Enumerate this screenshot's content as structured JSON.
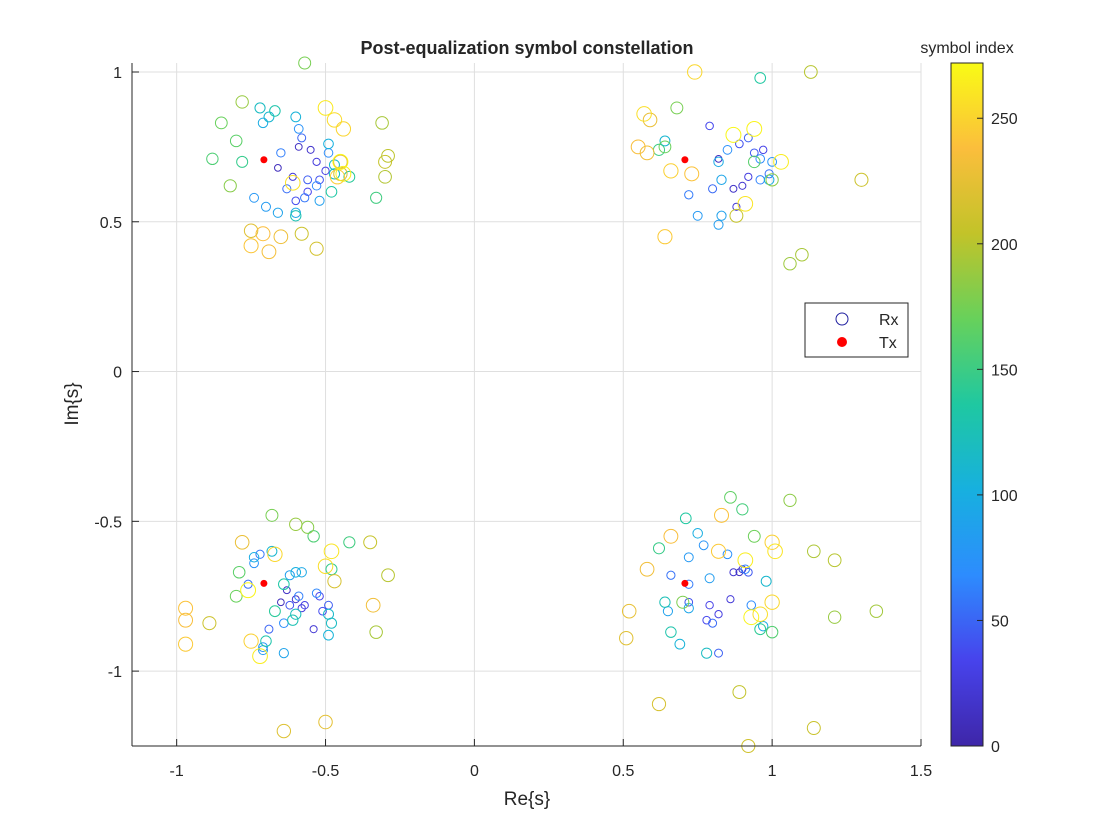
{
  "chart_data": {
    "type": "scatter",
    "title": "Post-equalization symbol constellation",
    "xlabel": "Re{s}",
    "ylabel": "Im{s}",
    "xlim": [
      -1.15,
      1.5
    ],
    "ylim": [
      -1.25,
      1.03
    ],
    "xticks": [
      -1,
      -0.5,
      0,
      0.5,
      1,
      1.5
    ],
    "xtick_labels": [
      "-1",
      "-0.5",
      "0",
      "0.5",
      "1",
      "1.5"
    ],
    "yticks": [
      -1,
      -0.5,
      0,
      0.5,
      1
    ],
    "ytick_labels": [
      "-1",
      "-0.5",
      "0",
      "0.5",
      "1"
    ],
    "grid": true,
    "legend": {
      "location": "right",
      "entries": [
        "Rx",
        "Tx"
      ]
    },
    "colorbar": {
      "label": "symbol index",
      "range": [
        0,
        272
      ],
      "ticks": [
        0,
        50,
        100,
        150,
        200,
        250
      ],
      "tick_labels": [
        "0",
        "50",
        "100",
        "150",
        "200",
        "250"
      ],
      "colormap": [
        "#3e26a8",
        "#4743ec",
        "#2d8cfe",
        "#17b0df",
        "#1fc8a1",
        "#67d15b",
        "#c2c329",
        "#fbbe3c",
        "#f9fb15"
      ]
    },
    "marker_colors": {
      "tx": "#ff0000",
      "legend_rx": "#2020a0"
    },
    "series": [
      {
        "name": "Rx",
        "points": [
          [
            -0.66,
            0.68,
            10
          ],
          [
            -0.59,
            0.75,
            14
          ],
          [
            -0.55,
            0.74,
            18
          ],
          [
            -0.61,
            0.65,
            22
          ],
          [
            -0.53,
            0.7,
            26
          ],
          [
            -0.5,
            0.67,
            30
          ],
          [
            -0.56,
            0.6,
            34
          ],
          [
            -0.6,
            0.57,
            38
          ],
          [
            -0.52,
            0.64,
            42
          ],
          [
            -0.56,
            0.64,
            46
          ],
          [
            -0.58,
            0.78,
            50
          ],
          [
            -0.63,
            0.61,
            54
          ],
          [
            -0.57,
            0.58,
            58
          ],
          [
            -0.65,
            0.73,
            62
          ],
          [
            -0.53,
            0.62,
            66
          ],
          [
            -0.49,
            0.73,
            70
          ],
          [
            -0.59,
            0.81,
            74
          ],
          [
            -0.74,
            0.58,
            78
          ],
          [
            -0.7,
            0.55,
            82
          ],
          [
            -0.52,
            0.57,
            86
          ],
          [
            -0.66,
            0.53,
            90
          ],
          [
            -0.6,
            0.53,
            94
          ],
          [
            -0.71,
            0.83,
            98
          ],
          [
            -0.49,
            0.76,
            102
          ],
          [
            -0.6,
            0.85,
            106
          ],
          [
            -0.69,
            0.85,
            110
          ],
          [
            -0.47,
            0.69,
            114
          ],
          [
            -0.72,
            0.88,
            118
          ],
          [
            -0.47,
            0.66,
            122
          ],
          [
            -0.6,
            0.52,
            126
          ],
          [
            -0.67,
            0.87,
            130
          ],
          [
            -0.48,
            0.6,
            134
          ],
          [
            -0.42,
            0.65,
            140
          ],
          [
            -0.78,
            0.7,
            146
          ],
          [
            -0.33,
            0.58,
            152
          ],
          [
            -0.88,
            0.71,
            158
          ],
          [
            -0.8,
            0.77,
            164
          ],
          [
            -0.85,
            0.83,
            170
          ],
          [
            -0.57,
            1.03,
            176
          ],
          [
            -0.82,
            0.62,
            182
          ],
          [
            -0.78,
            0.9,
            188
          ],
          [
            -0.31,
            0.83,
            194
          ],
          [
            -0.3,
            0.65,
            198
          ],
          [
            -0.29,
            0.72,
            202
          ],
          [
            -0.3,
            0.7,
            206
          ],
          [
            -0.58,
            0.46,
            210
          ],
          [
            -0.53,
            0.41,
            214
          ],
          [
            -0.45,
            0.66,
            218
          ],
          [
            -0.75,
            0.47,
            222
          ],
          [
            -0.45,
            0.7,
            226
          ],
          [
            -0.65,
            0.45,
            230
          ],
          [
            -0.69,
            0.4,
            234
          ],
          [
            -0.71,
            0.46,
            238
          ],
          [
            -0.75,
            0.42,
            242
          ],
          [
            -0.46,
            0.65,
            246
          ],
          [
            -0.44,
            0.81,
            250
          ],
          [
            -0.47,
            0.84,
            254
          ],
          [
            -0.61,
            0.63,
            258
          ],
          [
            -0.5,
            0.88,
            262
          ],
          [
            -0.44,
            0.66,
            266
          ],
          [
            -0.45,
            0.7,
            270
          ],
          [
            0.82,
            0.71,
            12
          ],
          [
            0.87,
            0.61,
            16
          ],
          [
            0.9,
            0.62,
            20
          ],
          [
            0.88,
            0.55,
            24
          ],
          [
            0.92,
            0.65,
            28
          ],
          [
            0.97,
            0.74,
            32
          ],
          [
            0.79,
            0.82,
            36
          ],
          [
            0.89,
            0.76,
            40
          ],
          [
            0.94,
            0.73,
            44
          ],
          [
            0.92,
            0.78,
            48
          ],
          [
            0.8,
            0.61,
            52
          ],
          [
            0.99,
            0.66,
            56
          ],
          [
            0.72,
            0.59,
            60
          ],
          [
            0.96,
            0.64,
            64
          ],
          [
            0.96,
            0.71,
            68
          ],
          [
            0.85,
            0.74,
            72
          ],
          [
            1.0,
            0.7,
            76
          ],
          [
            0.75,
            0.52,
            80
          ],
          [
            0.82,
            0.49,
            84
          ],
          [
            0.83,
            0.52,
            88
          ],
          [
            0.83,
            0.64,
            92
          ],
          [
            0.82,
            0.7,
            96
          ],
          [
            0.99,
            0.64,
            100
          ],
          [
            0.64,
            0.77,
            110
          ],
          [
            0.96,
            0.98,
            136
          ],
          [
            0.62,
            0.74,
            150
          ],
          [
            0.94,
            0.7,
            162
          ],
          [
            0.64,
            0.75,
            170
          ],
          [
            0.68,
            0.88,
            176
          ],
          [
            1.0,
            0.64,
            184
          ],
          [
            1.06,
            0.36,
            190
          ],
          [
            1.1,
            0.39,
            194
          ],
          [
            1.13,
            1.0,
            200
          ],
          [
            0.88,
            0.52,
            206
          ],
          [
            1.3,
            0.64,
            210
          ],
          [
            0.59,
            0.84,
            228
          ],
          [
            0.58,
            0.73,
            232
          ],
          [
            0.55,
            0.75,
            236
          ],
          [
            0.73,
            0.66,
            240
          ],
          [
            0.64,
            0.45,
            244
          ],
          [
            0.66,
            0.67,
            248
          ],
          [
            0.74,
            1.0,
            252
          ],
          [
            0.57,
            0.86,
            256
          ],
          [
            0.91,
            0.56,
            260
          ],
          [
            1.03,
            0.7,
            264
          ],
          [
            0.94,
            0.81,
            268
          ],
          [
            0.87,
            0.79,
            270
          ],
          [
            -0.65,
            -0.77,
            10
          ],
          [
            -0.63,
            -0.73,
            14
          ],
          [
            -0.6,
            -0.76,
            18
          ],
          [
            -0.54,
            -0.86,
            22
          ],
          [
            -0.58,
            -0.79,
            26
          ],
          [
            -0.57,
            -0.78,
            30
          ],
          [
            -0.52,
            -0.75,
            34
          ],
          [
            -0.51,
            -0.8,
            38
          ],
          [
            -0.62,
            -0.78,
            42
          ],
          [
            -0.49,
            -0.78,
            46
          ],
          [
            -0.69,
            -0.86,
            50
          ],
          [
            -0.76,
            -0.71,
            54
          ],
          [
            -0.72,
            -0.61,
            58
          ],
          [
            -0.59,
            -0.75,
            62
          ],
          [
            -0.53,
            -0.74,
            66
          ],
          [
            -0.64,
            -0.84,
            70
          ],
          [
            -0.74,
            -0.64,
            74
          ],
          [
            -0.71,
            -0.92,
            78
          ],
          [
            -0.71,
            -0.93,
            82
          ],
          [
            -0.62,
            -0.68,
            86
          ],
          [
            -0.64,
            -0.94,
            90
          ],
          [
            -0.58,
            -0.67,
            94
          ],
          [
            -0.74,
            -0.62,
            98
          ],
          [
            -0.6,
            -0.67,
            102
          ],
          [
            -0.49,
            -0.88,
            106
          ],
          [
            -0.68,
            -0.6,
            110
          ],
          [
            -0.49,
            -0.81,
            114
          ],
          [
            -0.48,
            -0.84,
            118
          ],
          [
            -0.6,
            -0.81,
            122
          ],
          [
            -0.61,
            -0.83,
            126
          ],
          [
            -0.7,
            -0.9,
            130
          ],
          [
            -0.64,
            -0.71,
            134
          ],
          [
            -0.67,
            -0.8,
            140
          ],
          [
            -0.48,
            -0.66,
            146
          ],
          [
            -0.42,
            -0.57,
            152
          ],
          [
            -0.54,
            -0.55,
            158
          ],
          [
            -0.79,
            -0.67,
            164
          ],
          [
            -0.8,
            -0.75,
            170
          ],
          [
            -0.68,
            -0.48,
            176
          ],
          [
            -0.56,
            -0.52,
            182
          ],
          [
            -0.6,
            -0.51,
            188
          ],
          [
            -0.33,
            -0.87,
            194
          ],
          [
            -0.29,
            -0.68,
            200
          ],
          [
            -0.35,
            -0.57,
            206
          ],
          [
            -0.89,
            -0.84,
            210
          ],
          [
            -0.47,
            -0.7,
            216
          ],
          [
            -0.64,
            -1.2,
            220
          ],
          [
            -0.5,
            -1.17,
            224
          ],
          [
            -0.78,
            -0.57,
            228
          ],
          [
            -0.34,
            -0.78,
            232
          ],
          [
            -0.97,
            -0.83,
            236
          ],
          [
            -0.97,
            -0.79,
            240
          ],
          [
            -0.97,
            -0.91,
            244
          ],
          [
            -0.75,
            -0.9,
            248
          ],
          [
            -0.67,
            -0.61,
            252
          ],
          [
            -0.5,
            -0.65,
            256
          ],
          [
            -0.48,
            -0.6,
            260
          ],
          [
            -0.72,
            -0.95,
            264
          ],
          [
            -0.76,
            -0.73,
            268
          ],
          [
            0.89,
            -0.67,
            12
          ],
          [
            0.9,
            -0.66,
            16
          ],
          [
            0.87,
            -0.67,
            20
          ],
          [
            0.86,
            -0.76,
            24
          ],
          [
            0.82,
            -0.81,
            28
          ],
          [
            0.79,
            -0.78,
            32
          ],
          [
            0.78,
            -0.83,
            36
          ],
          [
            0.72,
            -0.77,
            40
          ],
          [
            0.92,
            -0.67,
            44
          ],
          [
            0.82,
            -0.94,
            48
          ],
          [
            0.8,
            -0.84,
            52
          ],
          [
            0.66,
            -0.68,
            56
          ],
          [
            0.72,
            -0.71,
            60
          ],
          [
            0.91,
            -0.66,
            64
          ],
          [
            0.93,
            -0.78,
            68
          ],
          [
            0.85,
            -0.61,
            72
          ],
          [
            0.77,
            -0.58,
            76
          ],
          [
            0.72,
            -0.62,
            80
          ],
          [
            0.79,
            -0.69,
            84
          ],
          [
            0.65,
            -0.8,
            88
          ],
          [
            0.72,
            -0.79,
            92
          ],
          [
            0.97,
            -0.85,
            96
          ],
          [
            0.75,
            -0.54,
            100
          ],
          [
            0.69,
            -0.91,
            106
          ],
          [
            0.98,
            -0.7,
            112
          ],
          [
            0.78,
            -0.94,
            118
          ],
          [
            0.64,
            -0.77,
            124
          ],
          [
            0.66,
            -0.87,
            130
          ],
          [
            0.71,
            -0.49,
            136
          ],
          [
            0.96,
            -0.86,
            142
          ],
          [
            0.62,
            -0.59,
            148
          ],
          [
            0.9,
            -0.46,
            154
          ],
          [
            1.0,
            -0.87,
            160
          ],
          [
            0.86,
            -0.42,
            166
          ],
          [
            0.94,
            -0.55,
            172
          ],
          [
            0.7,
            -0.77,
            178
          ],
          [
            1.06,
            -0.43,
            184
          ],
          [
            1.21,
            -0.82,
            188
          ],
          [
            1.35,
            -0.8,
            192
          ],
          [
            1.14,
            -0.6,
            196
          ],
          [
            1.21,
            -0.63,
            200
          ],
          [
            0.89,
            -1.07,
            204
          ],
          [
            1.14,
            -1.19,
            208
          ],
          [
            0.92,
            -1.25,
            212
          ],
          [
            0.62,
            -1.11,
            216
          ],
          [
            0.51,
            -0.89,
            222
          ],
          [
            0.52,
            -0.8,
            226
          ],
          [
            0.58,
            -0.66,
            232
          ],
          [
            0.66,
            -0.55,
            236
          ],
          [
            0.83,
            -0.48,
            240
          ],
          [
            0.82,
            -0.6,
            244
          ],
          [
            1.0,
            -0.57,
            248
          ],
          [
            1.0,
            -0.77,
            252
          ],
          [
            0.96,
            -0.81,
            256
          ],
          [
            1.01,
            -0.6,
            260
          ],
          [
            0.91,
            -0.63,
            264
          ],
          [
            0.93,
            -0.82,
            268
          ]
        ]
      },
      {
        "name": "Tx",
        "points": [
          [
            -0.707,
            0.707
          ],
          [
            0.707,
            0.707
          ],
          [
            -0.707,
            -0.707
          ],
          [
            0.707,
            -0.707
          ]
        ]
      }
    ]
  }
}
